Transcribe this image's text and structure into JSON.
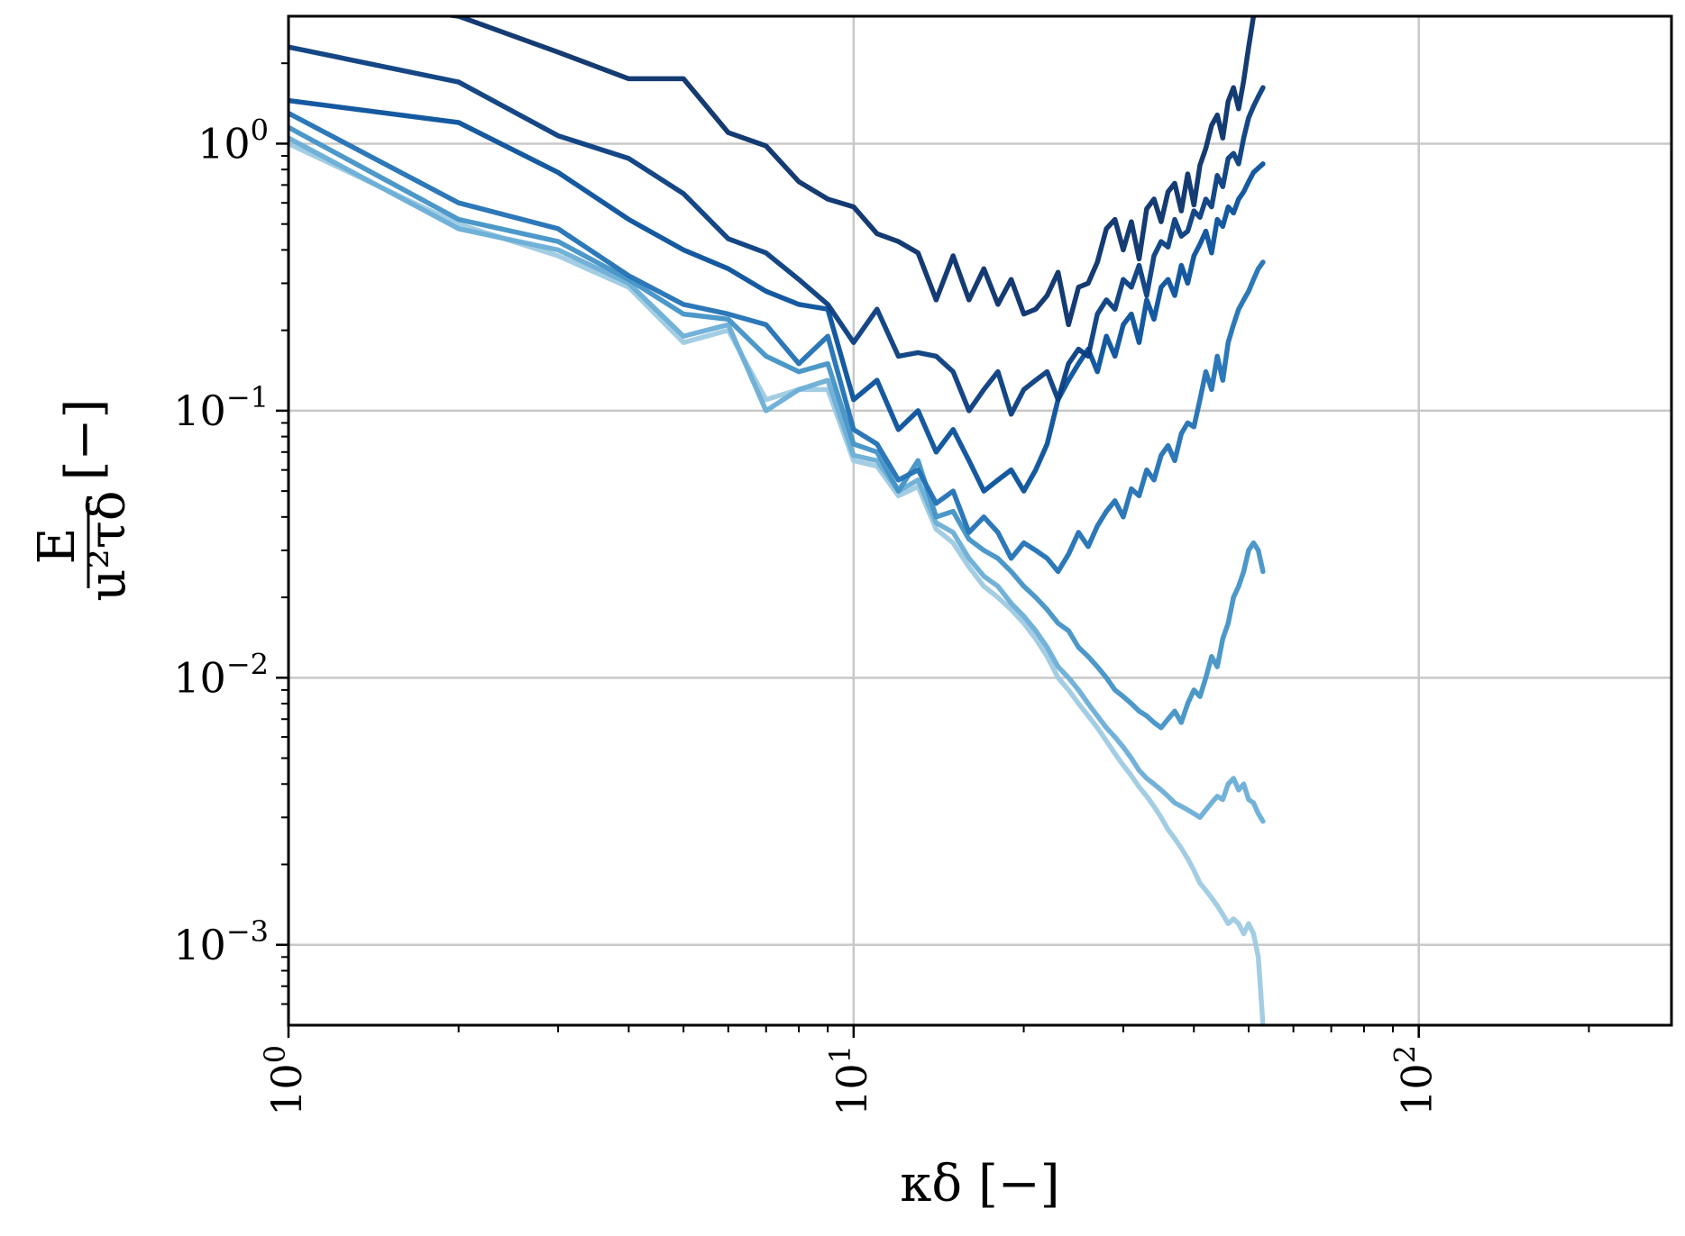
{
  "chart_data": {
    "type": "line",
    "title": "",
    "xlabel": "κδ [−]",
    "ylabel_fraction": {
      "numerator": "E",
      "denominator": "u²τδ"
    },
    "ylabel_unit": "[−]",
    "x_scale": "log",
    "y_scale": "log",
    "xlim": [
      1,
      280
    ],
    "ylim": [
      0.0005,
      3.0
    ],
    "grid": true,
    "legend": "none",
    "x_ticks": [
      {
        "value": 1,
        "base": "10",
        "exp": "0"
      },
      {
        "value": 10,
        "base": "10",
        "exp": "1"
      },
      {
        "value": 100,
        "base": "10",
        "exp": "2"
      }
    ],
    "y_ticks": [
      {
        "value": 0.001,
        "base": "10",
        "exp": "−3"
      },
      {
        "value": 0.01,
        "base": "10",
        "exp": "−2"
      },
      {
        "value": 0.1,
        "base": "10",
        "exp": "−1"
      },
      {
        "value": 1,
        "base": "10",
        "exp": "0"
      }
    ],
    "series": [
      {
        "color": "#08306b",
        "x": [
          1,
          2,
          3,
          4,
          5,
          6,
          7,
          8,
          9,
          10,
          11,
          12,
          13,
          14,
          15,
          16,
          17,
          18,
          19,
          20,
          21,
          22,
          23,
          24,
          25,
          26,
          27,
          28,
          29,
          30,
          31,
          32,
          33,
          34,
          35,
          36,
          37,
          38,
          39,
          40,
          41,
          42,
          43,
          44,
          45,
          46,
          47,
          48,
          49,
          50,
          51,
          52,
          53
        ],
        "y": [
          3.6,
          3.0,
          2.2,
          1.75,
          1.75,
          1.1,
          0.98,
          0.72,
          0.62,
          0.58,
          0.46,
          0.43,
          0.39,
          0.26,
          0.38,
          0.26,
          0.34,
          0.25,
          0.31,
          0.23,
          0.24,
          0.27,
          0.33,
          0.21,
          0.29,
          0.3,
          0.36,
          0.48,
          0.52,
          0.4,
          0.51,
          0.37,
          0.57,
          0.62,
          0.51,
          0.66,
          0.71,
          0.56,
          0.77,
          0.59,
          0.83,
          0.96,
          1.17,
          1.28,
          1.05,
          1.44,
          1.62,
          1.35,
          1.72,
          2.3,
          3.0,
          3.8,
          4.5
        ]
      },
      {
        "color": "#083d7f",
        "x": [
          1,
          2,
          3,
          4,
          5,
          6,
          7,
          8,
          9,
          10,
          11,
          12,
          13,
          14,
          15,
          16,
          17,
          18,
          19,
          20,
          21,
          22,
          23,
          24,
          25,
          26,
          27,
          28,
          29,
          30,
          31,
          32,
          33,
          34,
          35,
          36,
          37,
          38,
          39,
          40,
          41,
          42,
          43,
          44,
          45,
          46,
          47,
          48,
          49,
          50,
          51,
          52,
          53
        ],
        "y": [
          2.3,
          1.7,
          1.07,
          0.88,
          0.65,
          0.44,
          0.39,
          0.31,
          0.25,
          0.18,
          0.24,
          0.16,
          0.165,
          0.16,
          0.14,
          0.1,
          0.12,
          0.14,
          0.097,
          0.12,
          0.13,
          0.14,
          0.11,
          0.15,
          0.17,
          0.16,
          0.23,
          0.26,
          0.24,
          0.31,
          0.29,
          0.35,
          0.27,
          0.38,
          0.43,
          0.41,
          0.52,
          0.45,
          0.47,
          0.56,
          0.53,
          0.62,
          0.58,
          0.76,
          0.69,
          0.88,
          0.92,
          0.84,
          1.05,
          1.25,
          1.38,
          1.5,
          1.62
        ]
      },
      {
        "color": "#08519c",
        "x": [
          1,
          2,
          3,
          4,
          5,
          6,
          7,
          8,
          9,
          10,
          11,
          12,
          13,
          14,
          15,
          16,
          17,
          18,
          19,
          20,
          21,
          22,
          23,
          24,
          25,
          26,
          27,
          28,
          29,
          30,
          31,
          32,
          33,
          34,
          35,
          36,
          37,
          38,
          39,
          40,
          41,
          42,
          43,
          44,
          45,
          46,
          47,
          48,
          49,
          50,
          51,
          52,
          53
        ],
        "y": [
          1.45,
          1.2,
          0.78,
          0.52,
          0.4,
          0.34,
          0.28,
          0.25,
          0.24,
          0.11,
          0.13,
          0.085,
          0.1,
          0.07,
          0.085,
          0.065,
          0.05,
          0.055,
          0.06,
          0.05,
          0.06,
          0.075,
          0.11,
          0.13,
          0.15,
          0.17,
          0.14,
          0.19,
          0.16,
          0.21,
          0.23,
          0.18,
          0.26,
          0.22,
          0.29,
          0.31,
          0.27,
          0.35,
          0.3,
          0.38,
          0.42,
          0.47,
          0.39,
          0.52,
          0.49,
          0.58,
          0.55,
          0.62,
          0.66,
          0.72,
          0.78,
          0.81,
          0.84
        ]
      },
      {
        "color": "#2171b5",
        "x": [
          1,
          2,
          3,
          4,
          5,
          6,
          7,
          8,
          9,
          10,
          11,
          12,
          13,
          14,
          15,
          16,
          17,
          18,
          19,
          20,
          21,
          22,
          23,
          24,
          25,
          26,
          27,
          28,
          29,
          30,
          31,
          32,
          33,
          34,
          35,
          36,
          37,
          38,
          39,
          40,
          41,
          42,
          43,
          44,
          45,
          46,
          47,
          48,
          49,
          50,
          51,
          52,
          53
        ],
        "y": [
          1.3,
          0.6,
          0.48,
          0.32,
          0.25,
          0.23,
          0.21,
          0.15,
          0.19,
          0.085,
          0.075,
          0.055,
          0.06,
          0.045,
          0.05,
          0.035,
          0.04,
          0.035,
          0.028,
          0.032,
          0.03,
          0.028,
          0.025,
          0.029,
          0.035,
          0.031,
          0.037,
          0.042,
          0.046,
          0.04,
          0.051,
          0.048,
          0.06,
          0.055,
          0.068,
          0.074,
          0.065,
          0.082,
          0.09,
          0.087,
          0.11,
          0.14,
          0.12,
          0.16,
          0.13,
          0.18,
          0.21,
          0.24,
          0.26,
          0.28,
          0.31,
          0.34,
          0.36
        ]
      },
      {
        "color": "#4292c6",
        "x": [
          1,
          2,
          3,
          4,
          5,
          6,
          7,
          8,
          9,
          10,
          11,
          12,
          13,
          14,
          15,
          16,
          17,
          18,
          19,
          20,
          21,
          22,
          23,
          24,
          25,
          26,
          27,
          28,
          29,
          30,
          31,
          32,
          33,
          34,
          35,
          36,
          37,
          38,
          39,
          40,
          41,
          42,
          43,
          44,
          45,
          46,
          47,
          48,
          49,
          50,
          51,
          52,
          53
        ],
        "y": [
          1.15,
          0.52,
          0.43,
          0.31,
          0.23,
          0.22,
          0.16,
          0.14,
          0.15,
          0.075,
          0.07,
          0.05,
          0.065,
          0.04,
          0.042,
          0.033,
          0.03,
          0.028,
          0.025,
          0.022,
          0.02,
          0.018,
          0.016,
          0.015,
          0.013,
          0.012,
          0.011,
          0.01,
          0.009,
          0.0085,
          0.008,
          0.0075,
          0.0072,
          0.0068,
          0.0065,
          0.007,
          0.0075,
          0.0068,
          0.008,
          0.009,
          0.0085,
          0.01,
          0.012,
          0.011,
          0.014,
          0.016,
          0.02,
          0.022,
          0.025,
          0.03,
          0.032,
          0.03,
          0.025
        ]
      },
      {
        "color": "#6baed6",
        "x": [
          1,
          2,
          3,
          4,
          5,
          6,
          7,
          8,
          9,
          10,
          11,
          12,
          13,
          14,
          15,
          16,
          17,
          18,
          19,
          20,
          21,
          22,
          23,
          24,
          25,
          26,
          27,
          28,
          29,
          30,
          31,
          32,
          33,
          34,
          35,
          36,
          37,
          38,
          39,
          40,
          41,
          42,
          43,
          44,
          45,
          46,
          47,
          48,
          49,
          50,
          51,
          52,
          53
        ],
        "y": [
          1.05,
          0.48,
          0.4,
          0.3,
          0.19,
          0.21,
          0.1,
          0.12,
          0.13,
          0.068,
          0.065,
          0.05,
          0.055,
          0.038,
          0.035,
          0.028,
          0.024,
          0.022,
          0.019,
          0.017,
          0.015,
          0.013,
          0.011,
          0.01,
          0.009,
          0.008,
          0.0072,
          0.0065,
          0.006,
          0.0055,
          0.005,
          0.0045,
          0.0042,
          0.004,
          0.0038,
          0.0036,
          0.0034,
          0.0033,
          0.0032,
          0.0031,
          0.003,
          0.0032,
          0.0034,
          0.0036,
          0.0035,
          0.004,
          0.0042,
          0.0038,
          0.004,
          0.0035,
          0.0034,
          0.0031,
          0.0029
        ]
      },
      {
        "color": "#9ecae1",
        "x": [
          1,
          2,
          3,
          4,
          5,
          6,
          7,
          8,
          9,
          10,
          11,
          12,
          13,
          14,
          15,
          16,
          17,
          18,
          19,
          20,
          21,
          22,
          23,
          24,
          25,
          26,
          27,
          28,
          29,
          30,
          31,
          32,
          33,
          34,
          35,
          36,
          37,
          38,
          39,
          40,
          41,
          42,
          43,
          44,
          45,
          46,
          47,
          48,
          49,
          50,
          51,
          52,
          53
        ],
        "y": [
          1.0,
          0.5,
          0.38,
          0.29,
          0.18,
          0.2,
          0.11,
          0.12,
          0.12,
          0.065,
          0.062,
          0.048,
          0.052,
          0.036,
          0.032,
          0.026,
          0.022,
          0.02,
          0.018,
          0.016,
          0.014,
          0.012,
          0.01,
          0.009,
          0.008,
          0.0072,
          0.0065,
          0.0058,
          0.0052,
          0.0047,
          0.0043,
          0.0039,
          0.0036,
          0.0033,
          0.003,
          0.0027,
          0.0025,
          0.0023,
          0.0021,
          0.0019,
          0.0017,
          0.0016,
          0.0015,
          0.0014,
          0.0013,
          0.0012,
          0.00125,
          0.0012,
          0.0011,
          0.0012,
          0.0011,
          0.0009,
          0.0005
        ]
      }
    ]
  }
}
